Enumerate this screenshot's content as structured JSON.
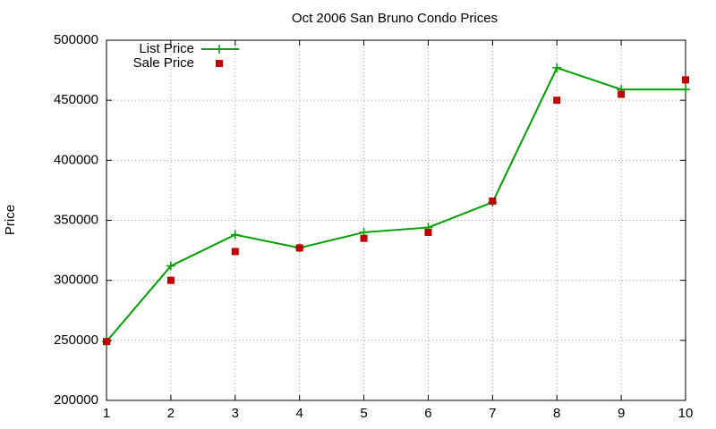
{
  "chart_data": {
    "type": "line",
    "title": "Oct 2006 San Bruno Condo Prices",
    "y_label": "Price",
    "x": [
      1,
      2,
      3,
      4,
      5,
      6,
      7,
      8,
      9,
      10
    ],
    "series": [
      {
        "name": "List Price",
        "color": "#00a000",
        "style": "linespoints",
        "values": [
          249000,
          312000,
          338000,
          327000,
          340000,
          344000,
          365000,
          477000,
          459000,
          459000
        ]
      },
      {
        "name": "Sale Price",
        "color": "#c00000",
        "style": "points",
        "values": [
          249000,
          300000,
          324000,
          327000,
          335000,
          340000,
          366000,
          450000,
          455000,
          467000
        ]
      }
    ],
    "xlim": [
      1,
      10
    ],
    "xticks": [
      1,
      2,
      3,
      4,
      5,
      6,
      7,
      8,
      9,
      10
    ],
    "ylim": [
      200000,
      500000
    ],
    "yticks": [
      200000,
      250000,
      300000,
      350000,
      400000,
      450000,
      500000
    ],
    "grid": true,
    "legend": "top-left"
  }
}
